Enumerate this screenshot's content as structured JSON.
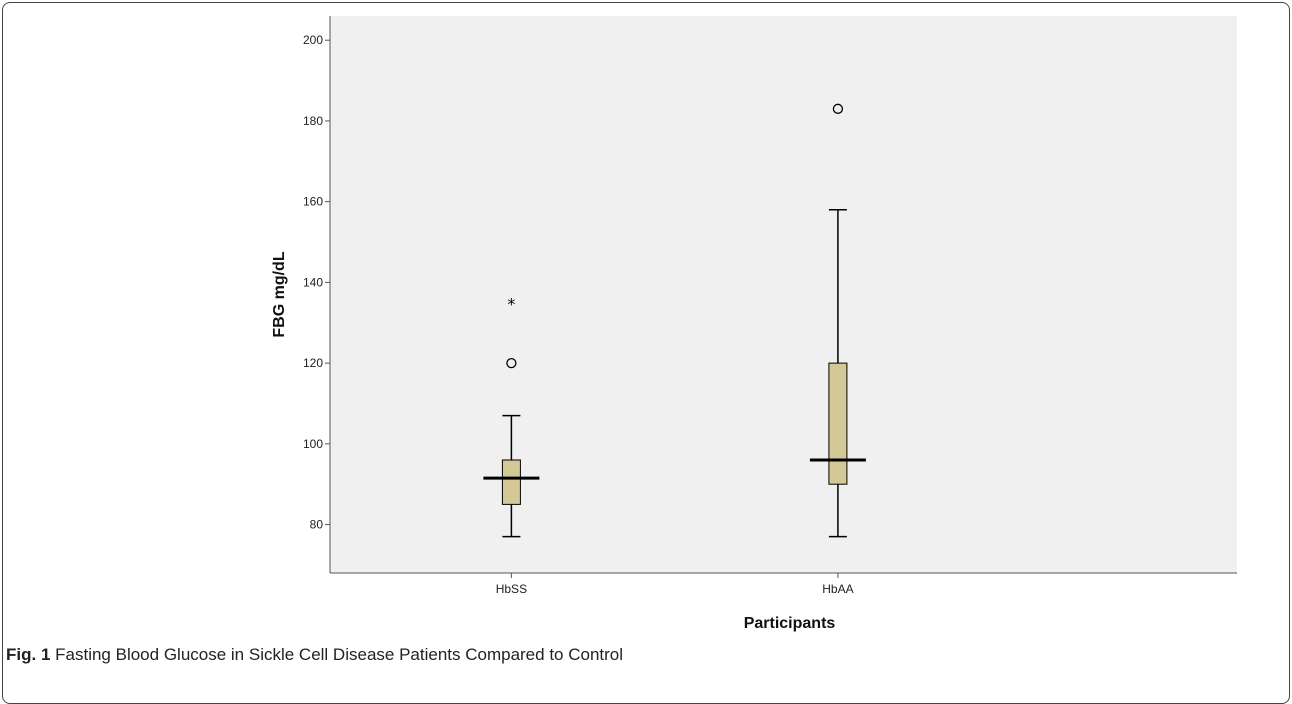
{
  "figure": {
    "label": "Fig. 1",
    "caption": "Fasting Blood Glucose in Sickle Cell Disease Patients Compared to Control"
  },
  "chart_data": {
    "type": "boxplot",
    "title": "",
    "xlabel": "Participants",
    "ylabel": "FBG mg/dL",
    "ylim": [
      68,
      206
    ],
    "yticks": [
      80,
      100,
      120,
      140,
      160,
      180,
      200
    ],
    "ytick_labels": [
      "80",
      "100",
      "120",
      "140",
      "160",
      "180",
      "200"
    ],
    "categories": [
      "HbSS",
      "HbAA"
    ],
    "grid": false,
    "colors": {
      "plot_bg": "#f0f0f0",
      "box_fill": "#d4c996",
      "stroke": "#000000"
    },
    "boxes": [
      {
        "category": "HbSS",
        "whisker_low": 77,
        "q1": 85,
        "median": 91.5,
        "q3": 96,
        "whisker_high": 107,
        "outliers": [
          {
            "value": 120,
            "marker": "circle"
          },
          {
            "value": 135,
            "marker": "star"
          }
        ]
      },
      {
        "category": "HbAA",
        "whisker_low": 77,
        "q1": 90,
        "median": 96,
        "q3": 120,
        "whisker_high": 158,
        "outliers": [
          {
            "value": 183,
            "marker": "circle"
          }
        ]
      }
    ]
  }
}
